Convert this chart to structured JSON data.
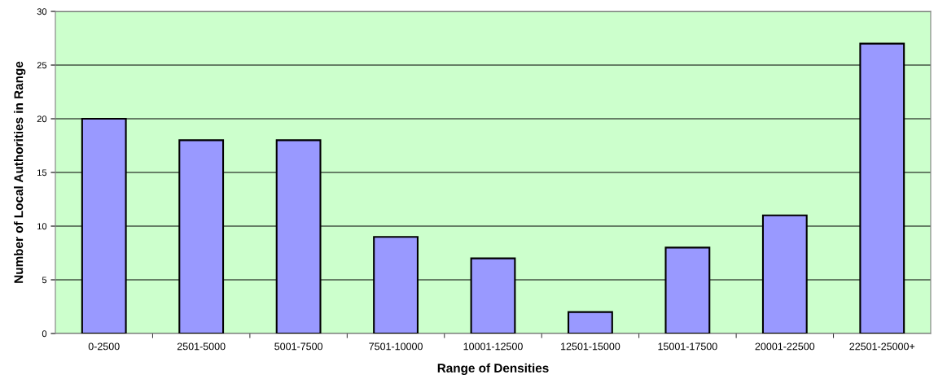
{
  "chart_data": {
    "type": "bar",
    "xlabel": "Range of Densities",
    "ylabel": "Number of Local Authorities in Range",
    "categories": [
      "0-2500",
      "2501-5000",
      "5001-7500",
      "7501-10000",
      "10001-12500",
      "12501-15000",
      "15001-17500",
      "20001-22500",
      "22501-25000+"
    ],
    "values": [
      20,
      18,
      18,
      9,
      7,
      2,
      8,
      11,
      27
    ],
    "color": "#9999ff",
    "ylim": [
      0,
      30
    ],
    "yticks": [
      0,
      5,
      10,
      15,
      20,
      25,
      30
    ],
    "grid": "y"
  }
}
